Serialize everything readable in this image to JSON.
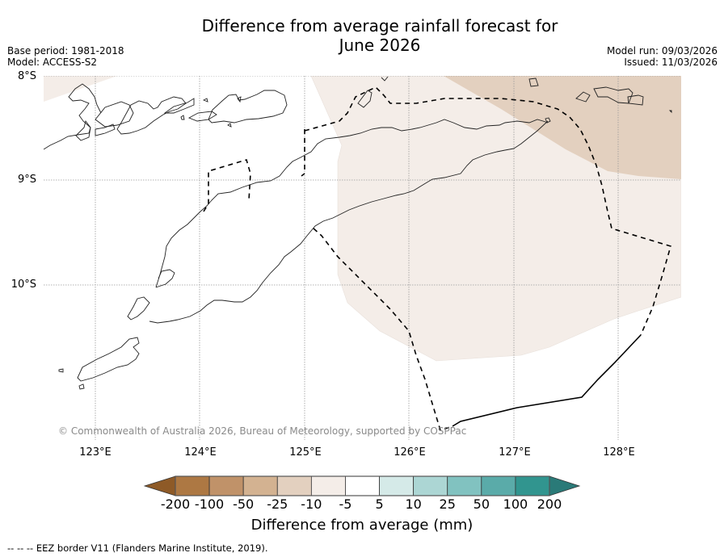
{
  "header": {
    "title_line1": "Difference from average rainfall forecast for",
    "title_line2": "June 2026",
    "base_period": "Base period: 1981-2018",
    "model": "Model: ACCESS-S2",
    "model_run": "Model run: 09/03/2026",
    "issued": "Issued: 11/03/2026"
  },
  "map": {
    "lat_ticks": [
      "8°S",
      "9°S",
      "10°S"
    ],
    "lon_ticks": [
      "123°E",
      "124°E",
      "125°E",
      "126°E",
      "127°E",
      "128°E"
    ],
    "copyright": "© Commonwealth of Australia 2026, Bureau of Meteorology, supported by COSPPac",
    "regions": [
      {
        "category": "-10 to -5",
        "color": "#f4ede8"
      },
      {
        "category": "-25 to -10",
        "color": "#e3d0bf"
      }
    ]
  },
  "colorbar": {
    "title": "Difference from average (mm)",
    "ticks": [
      "-200",
      "-100",
      "-50",
      "-25",
      "-10",
      "-5",
      "5",
      "10",
      "25",
      "50",
      "100",
      "200"
    ],
    "under_color": "#8e5a27",
    "over_color": "#2a7a78",
    "colors": [
      "#ad7843",
      "#c09269",
      "#d3b291",
      "#e3d0bf",
      "#f4ede8",
      "#ffffff",
      "#d5eae8",
      "#acd6d4",
      "#81c2c0",
      "#5aaba9",
      "#31958f"
    ]
  },
  "footer": {
    "eez_note": "--  --  -- EEZ border V11 (Flanders Marine Institute, 2019)."
  }
}
